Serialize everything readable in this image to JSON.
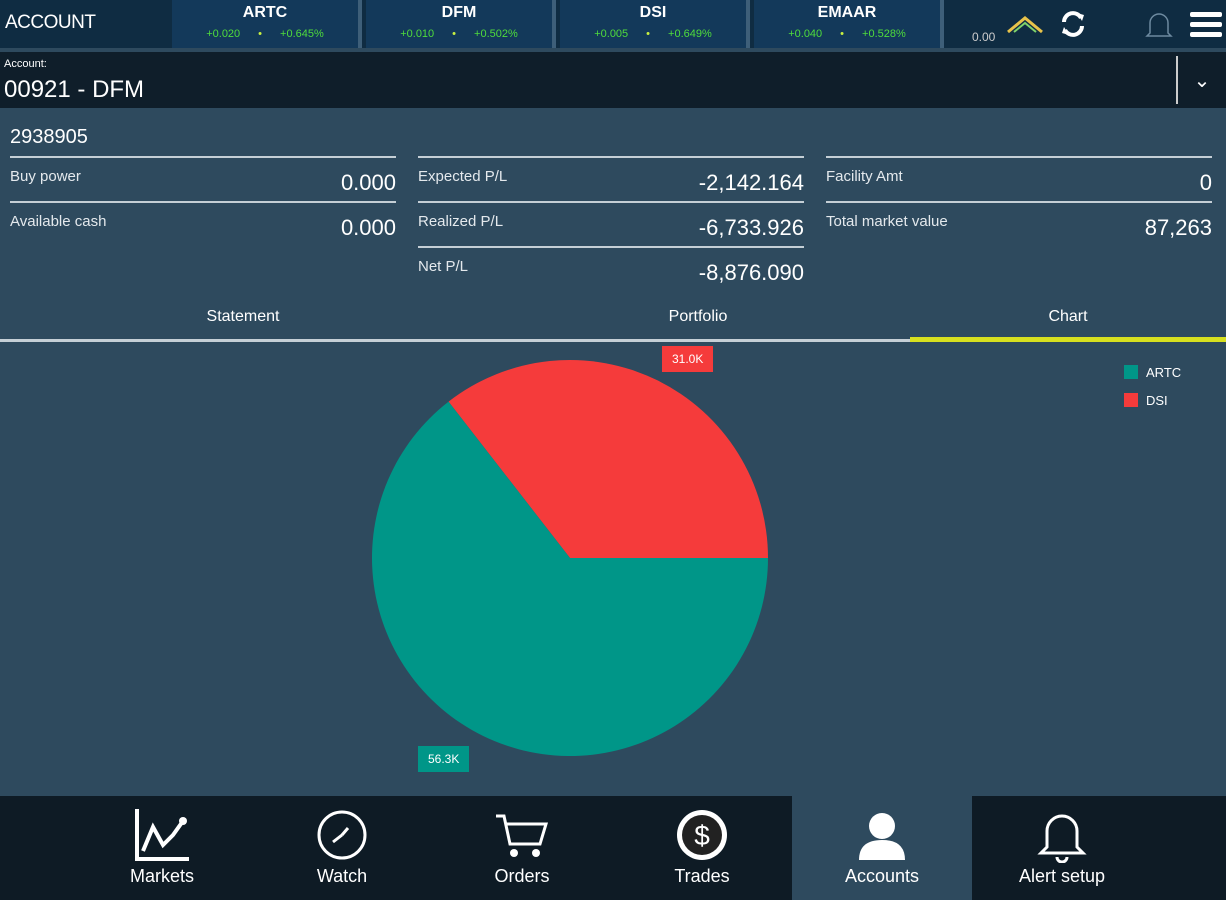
{
  "header": {
    "title": "ACCOUNT",
    "tickers": [
      {
        "symbol": "ARTC",
        "change": "+0.020",
        "pct": "+0.645%"
      },
      {
        "symbol": "DFM",
        "change": "+0.010",
        "pct": "+0.502%"
      },
      {
        "symbol": "DSI",
        "change": "+0.005",
        "pct": "+0.649%"
      },
      {
        "symbol": "EMAAR",
        "change": "+0.040",
        "pct": "+0.528%"
      }
    ],
    "last_value": "0.00"
  },
  "account": {
    "label": "Account:",
    "value": "00921 - DFM",
    "number": "2938905"
  },
  "summary": [
    [
      {
        "k": "Buy power",
        "v": "0.000"
      },
      {
        "k": "Available cash",
        "v": "0.000"
      }
    ],
    [
      {
        "k": "Expected P/L",
        "v": "-2,142.164"
      },
      {
        "k": "Realized P/L",
        "v": "-6,733.926"
      },
      {
        "k": "Net P/L",
        "v": "-8,876.090"
      }
    ],
    [
      {
        "k": "Facility Amt",
        "v": "0"
      },
      {
        "k": "Total market value",
        "v": "87,263"
      }
    ]
  ],
  "tabs": [
    "Statement",
    "Portfolio",
    "Chart"
  ],
  "chart_data": {
    "type": "pie",
    "slices": [
      {
        "name": "ARTC",
        "value": 56.3,
        "label": "56.3K",
        "color": "#009688"
      },
      {
        "name": "DSI",
        "value": 31.0,
        "label": "31.0K",
        "color": "#f53b3b"
      }
    ],
    "legend_position": "top-right"
  },
  "nav": [
    "Markets",
    "Watch",
    "Orders",
    "Trades",
    "Accounts",
    "Alert setup"
  ]
}
